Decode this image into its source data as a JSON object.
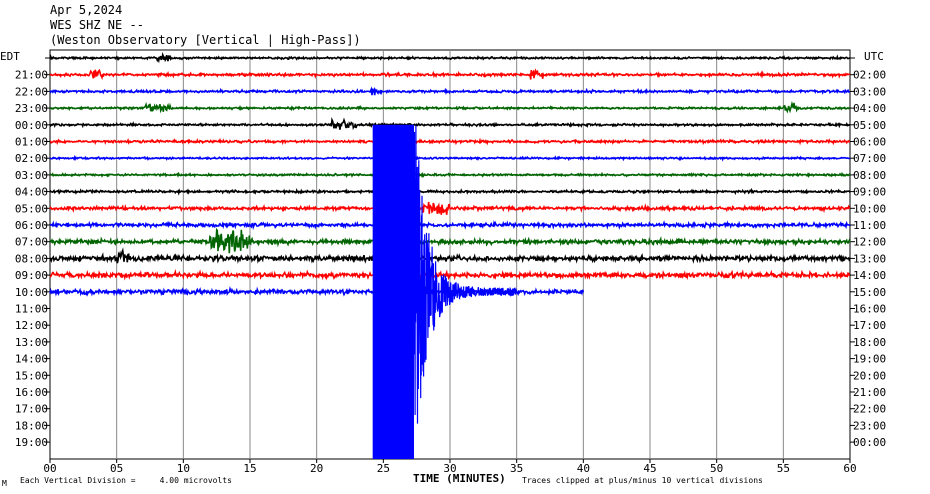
{
  "header": {
    "date": "Apr 5,2024",
    "station": "WES SHZ NE --",
    "observatory": "(Weston Observatory [Vertical | High-Pass])"
  },
  "footer": {
    "corner_mark": "M",
    "vertical_division": "Each Vertical Division =     4.00 microvolts",
    "clip_note": "Traces clipped at plus/minus 10 vertical divisions"
  },
  "chart_data": {
    "type": "line",
    "title": "",
    "xlabel": "TIME (MINUTES)",
    "xlim": [
      0,
      60
    ],
    "x_ticks": [
      "00",
      "05",
      "10",
      "15",
      "20",
      "25",
      "30",
      "35",
      "40",
      "45",
      "50",
      "55",
      "60"
    ],
    "left_axis_label": "EDT",
    "right_axis_label": "UTC",
    "left_row_labels": [
      "",
      "21:00",
      "22:00",
      "23:00",
      "00:00",
      "01:00",
      "02:00",
      "03:00",
      "04:00",
      "05:00",
      "06:00",
      "07:00",
      "08:00",
      "09:00",
      "10:00",
      "11:00",
      "12:00",
      "13:00",
      "14:00",
      "15:00",
      "16:00",
      "17:00",
      "18:00",
      "19:00"
    ],
    "right_row_labels": [
      "",
      "02:00",
      "03:00",
      "04:00",
      "05:00",
      "06:00",
      "07:00",
      "08:00",
      "09:00",
      "10:00",
      "11:00",
      "12:00",
      "13:00",
      "14:00",
      "15:00",
      "16:00",
      "17:00",
      "18:00",
      "19:00",
      "20:00",
      "21:00",
      "22:00",
      "23:00",
      "00:00"
    ],
    "trace_colors": [
      "#000000",
      "#ff0000",
      "#0000ff",
      "#006400"
    ],
    "traces_recorded_rows": 15,
    "last_trace_end_minute": 40,
    "event": {
      "onset_minute": 24.2,
      "saturated_until_minute": 27.3,
      "coda_end_minute": 35
    }
  }
}
